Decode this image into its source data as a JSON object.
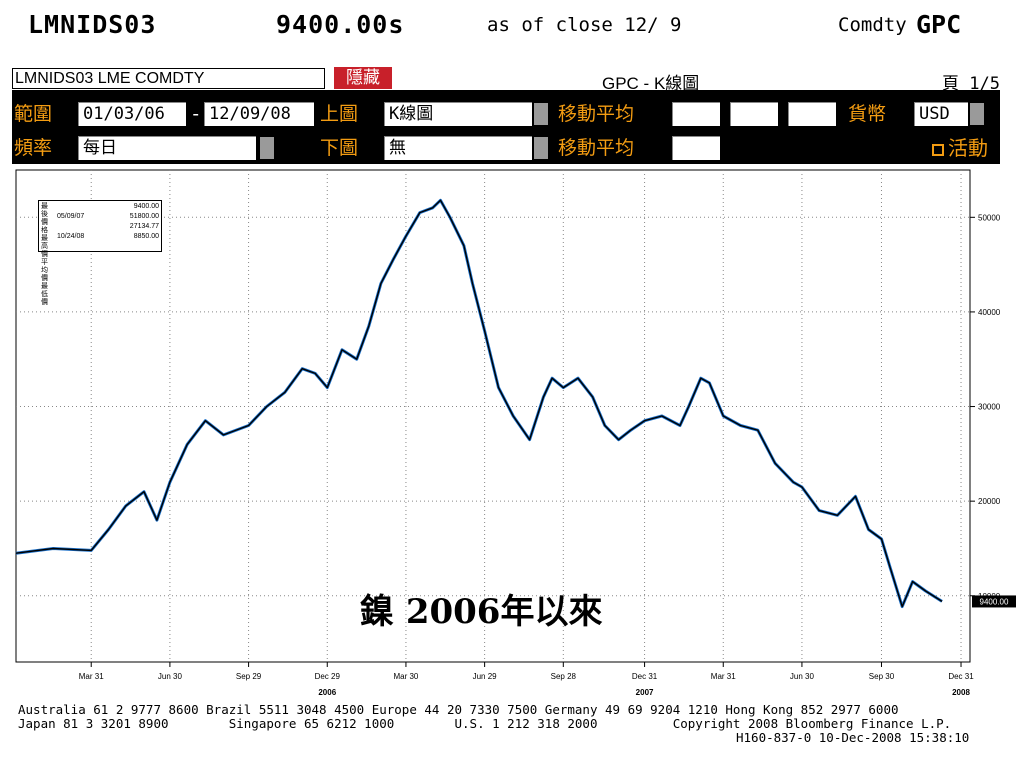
{
  "header": {
    "ticker": "LMNIDS03",
    "price": "9400.00s",
    "as_of": "as of close 12/ 9",
    "sector": "Comdty",
    "function": "GPC"
  },
  "panel": {
    "security_name": "LMNIDS03 LME COMDTY",
    "hide_button": "隱藏",
    "title": "GPC - K線圖",
    "page": "頁 1/5",
    "range_label": "範圍",
    "date_from": "01/03/06",
    "date_sep": "-",
    "date_to": "12/09/08",
    "upper_label": "上圖",
    "upper_value": "K線圖",
    "ma_label_1": "移動平均",
    "currency_label": "貨幣",
    "currency_value": "USD",
    "freq_label": "頻率",
    "freq_value": "每日",
    "lower_label": "下圖",
    "lower_value": "無",
    "ma_label_2": "移動平均",
    "active_button": "活動"
  },
  "stats": {
    "vertical_labels": "最後價格 最高價 平均價 最低價",
    "rows": [
      {
        "date": "",
        "value": "9400.00"
      },
      {
        "date": "05/09/07",
        "value": "51800.00"
      },
      {
        "date": "",
        "value": "27134.77"
      },
      {
        "date": "10/24/08",
        "value": "8850.00"
      }
    ]
  },
  "caption": "鎳 2006年以來",
  "chart_data": {
    "type": "line",
    "title": "",
    "xlabel": "",
    "ylabel": "",
    "ylim": [
      3000,
      55000
    ],
    "y_ticks": [
      10000,
      20000,
      30000,
      40000,
      50000
    ],
    "y_tick_labels": [
      "10000",
      "20000",
      "30000",
      "40000",
      "50000"
    ],
    "x_tick_labels": [
      "Mar 31",
      "Jun 30",
      "Sep 29",
      "Dec 29",
      "Mar 30",
      "Jun 29",
      "Sep 28",
      "Dec 31",
      "Mar 31",
      "Jun 30",
      "Sep 30",
      "Dec 31"
    ],
    "year_labels": [
      "2006",
      "2007",
      "2008"
    ],
    "last_price_label": "9400.00",
    "x": [
      "01/03/06",
      "02/15/06",
      "03/31/06",
      "04/20/06",
      "05/10/06",
      "05/31/06",
      "06/15/06",
      "06/30/06",
      "07/20/06",
      "08/10/06",
      "08/31/06",
      "09/29/06",
      "10/20/06",
      "11/10/06",
      "11/30/06",
      "12/15/06",
      "12/29/06",
      "01/15/07",
      "02/01/07",
      "02/15/07",
      "03/01/07",
      "03/15/07",
      "03/30/07",
      "04/15/07",
      "04/30/07",
      "05/09/07",
      "05/20/07",
      "06/05/07",
      "06/15/07",
      "06/29/07",
      "07/15/07",
      "08/01/07",
      "08/20/07",
      "09/05/07",
      "09/15/07",
      "09/28/07",
      "10/15/07",
      "11/01/07",
      "11/15/07",
      "12/01/07",
      "12/15/07",
      "12/31/07",
      "01/20/08",
      "02/10/08",
      "02/20/08",
      "03/05/08",
      "03/15/08",
      "03/31/08",
      "04/20/08",
      "05/10/08",
      "05/30/08",
      "06/20/08",
      "06/30/08",
      "07/20/08",
      "08/10/08",
      "08/31/08",
      "09/15/08",
      "09/30/08",
      "10/10/08",
      "10/24/08",
      "11/05/08",
      "11/20/08",
      "12/09/08"
    ],
    "series": [
      {
        "values": [
          14500,
          15000,
          14800,
          17000,
          19500,
          21000,
          18000,
          22000,
          26000,
          28500,
          27000,
          28000,
          30000,
          31500,
          34000,
          33500,
          32000,
          36000,
          35000,
          38500,
          43000,
          45500,
          48000,
          50500,
          51000,
          51800,
          50000,
          47000,
          43000,
          38000,
          32000,
          29000,
          26500,
          31000,
          33000,
          32000,
          33000,
          31000,
          28000,
          26500,
          27500,
          28500,
          29000,
          28000,
          30000,
          33000,
          32500,
          29000,
          28000,
          27500,
          24000,
          22000,
          21500,
          19000,
          18500,
          20500,
          17000,
          16000,
          13000,
          8850,
          11500,
          10500,
          9400
        ]
      }
    ]
  },
  "footer": {
    "line1": "Australia 61 2 9777 8600 Brazil 5511 3048 4500 Europe 44 20 7330 7500 Germany 49 69 9204 1210 Hong Kong 852 2977 6000",
    "line2": "Japan 81 3 3201 8900        Singapore 65 6212 1000        U.S. 1 212 318 2000          Copyright 2008 Bloomberg Finance L.P.",
    "line3": "H160-837-0 10-Dec-2008 15:38:10"
  }
}
